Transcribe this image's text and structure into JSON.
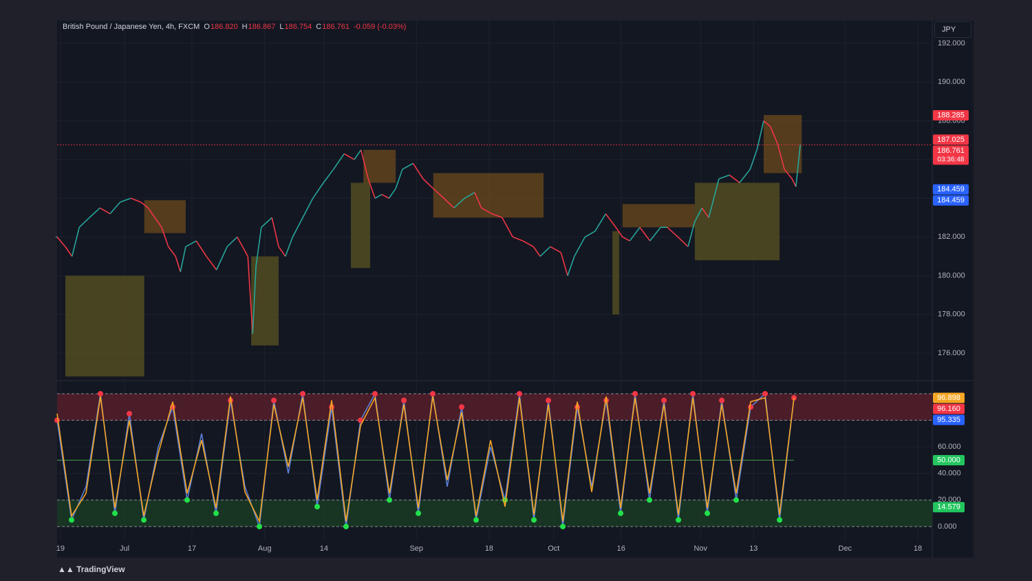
{
  "header": {
    "symbol": "British Pound / Japanese Yen, 4h, FXCM",
    "open_label": "O",
    "open": "186.820",
    "high_label": "H",
    "high": "186.867",
    "low_label": "L",
    "low": "186.754",
    "close_label": "C",
    "close": "186.761",
    "change": "-0.059 (-0.03%)"
  },
  "currency": "JPY",
  "brand": "TradingView",
  "chart_data": [
    {
      "type": "line",
      "up_color": "#26a69a",
      "down_color": "#f23645",
      "x": [
        0,
        1.7,
        3.1,
        4.6,
        6.7,
        8.9,
        11,
        13.1,
        15.3,
        17.4,
        18.9,
        20.3,
        21.7,
        23.1,
        24.6,
        25.6,
        26.7,
        28.9,
        31,
        33.1,
        35.3,
        37.4,
        39.6,
        40.6,
        41.3,
        42.4,
        44.6,
        46,
        47.4,
        48.9,
        51,
        53.1,
        55.3,
        57.4,
        59.6,
        61.7,
        63.1,
        64.6,
        66,
        67.4,
        68.9,
        70.3,
        71.7,
        73.9,
        76,
        78.1,
        80.3,
        82.4,
        84.6,
        86.7,
        88.1,
        90.3,
        92.4,
        94.6,
        96.7,
        98.9,
        100.3,
        102.4,
        104.6,
        106,
        107.4,
        109.6,
        111.7,
        113.9,
        116,
        117.4,
        118.9,
        121,
        123.1,
        125.3,
        126.7,
        128.9,
        131,
        132.4,
        133.9,
        135.3,
        137.4,
        139.6,
        141.7,
        143.9,
        145.3,
        146.7,
        148.1,
        149.6,
        151,
        152.6,
        153.4,
        154.3
      ],
      "values": [
        182.0,
        181.5,
        181.0,
        182.5,
        183.0,
        183.5,
        183.2,
        183.8,
        184.0,
        183.8,
        183.5,
        183.0,
        182.5,
        181.5,
        181.0,
        180.2,
        181.5,
        181.8,
        181.0,
        180.3,
        181.5,
        182.0,
        181.0,
        177.0,
        180.5,
        182.5,
        183.0,
        181.5,
        181.0,
        182.0,
        183.0,
        184.0,
        184.8,
        185.5,
        186.3,
        186.0,
        186.5,
        185.0,
        184.0,
        184.2,
        184.0,
        184.5,
        185.5,
        185.8,
        185.0,
        184.5,
        184.0,
        183.5,
        184.0,
        184.3,
        183.5,
        183.2,
        183.0,
        182.0,
        181.8,
        181.5,
        181.0,
        181.5,
        181.2,
        180.0,
        181.0,
        182.0,
        182.3,
        183.2,
        182.5,
        182.0,
        181.8,
        182.5,
        181.8,
        182.5,
        182.5,
        182.0,
        181.5,
        182.8,
        183.5,
        183.0,
        185.0,
        185.2,
        184.8,
        185.5,
        186.5,
        188.0,
        187.7,
        186.8,
        185.5,
        185.0,
        184.6,
        186.761
      ],
      "zones": [
        {
          "x0": 1.7,
          "x1": 18.1,
          "top": 180.0,
          "bottom": 174.8,
          "color": "#5b5320"
        },
        {
          "x0": 18.1,
          "x1": 26.7,
          "top": 183.9,
          "bottom": 182.2,
          "color": "#6b4a1c"
        },
        {
          "x0": 40.3,
          "x1": 46,
          "top": 181.0,
          "bottom": 176.4,
          "color": "#5b5320"
        },
        {
          "x0": 61,
          "x1": 65,
          "top": 184.8,
          "bottom": 180.4,
          "color": "#5b5320"
        },
        {
          "x0": 63.6,
          "x1": 70.3,
          "top": 186.5,
          "bottom": 184.8,
          "color": "#6b4a1c"
        },
        {
          "x0": 78.1,
          "x1": 101,
          "top": 185.3,
          "bottom": 183.0,
          "color": "#6b4a1c"
        },
        {
          "x0": 115.3,
          "x1": 116.7,
          "top": 182.3,
          "bottom": 178.0,
          "color": "#5b5320"
        },
        {
          "x0": 117.4,
          "x1": 132.4,
          "top": 183.7,
          "bottom": 182.5,
          "color": "#6b4a1c"
        },
        {
          "x0": 132.4,
          "x1": 150,
          "top": 184.8,
          "bottom": 180.8,
          "color": "#5b5320"
        },
        {
          "x0": 146.7,
          "x1": 154.6,
          "top": 188.3,
          "bottom": 185.3,
          "color": "#6b4a1c"
        }
      ],
      "price_labels": [
        {
          "value": 188.285,
          "label": "188.285",
          "color": "#f23645"
        },
        {
          "value": 187.025,
          "label": "187.025",
          "color": "#f23645"
        },
        {
          "value": 186.761,
          "label": "186.761",
          "color": "#f23645",
          "timer": "03:36:48"
        },
        {
          "value": 184.459,
          "label": "184.459",
          "color": "#2962ff"
        },
        {
          "value": 184.459,
          "label": "184.459",
          "color": "#2962ff"
        }
      ],
      "xlim": [
        0,
        181.7
      ],
      "ylim": [
        174.76,
        193.17
      ],
      "yticks": [
        {
          "value": 176,
          "label": "176.000"
        },
        {
          "value": 178,
          "label": "178.000"
        },
        {
          "value": 180,
          "label": "180.000"
        },
        {
          "value": 182,
          "label": "182.000"
        },
        {
          "value": 184,
          "label": "184.000"
        },
        {
          "value": 186,
          "label": "186.000"
        },
        {
          "value": 188,
          "label": "188.000"
        },
        {
          "value": 190,
          "label": "190.000"
        },
        {
          "value": 192,
          "label": "192.000"
        }
      ],
      "xticks": [
        {
          "value": 0.7,
          "label": "19"
        },
        {
          "value": 14,
          "label": "Jul"
        },
        {
          "value": 28,
          "label": "17"
        },
        {
          "value": 43.1,
          "label": "Aug"
        },
        {
          "value": 55.4,
          "label": "14"
        },
        {
          "value": 74.6,
          "label": "Sep"
        },
        {
          "value": 89.7,
          "label": "18"
        },
        {
          "value": 103.1,
          "label": "Oct"
        },
        {
          "value": 117.1,
          "label": "16"
        },
        {
          "value": 133.6,
          "label": "Nov"
        },
        {
          "value": 144.6,
          "label": "13"
        },
        {
          "value": 163.6,
          "label": "Dec"
        },
        {
          "value": 178.7,
          "label": "18"
        }
      ]
    },
    {
      "type": "oscillator",
      "x": [
        0,
        3,
        6,
        9,
        12,
        15,
        18,
        21,
        24,
        27,
        30,
        33,
        36,
        39,
        42,
        45,
        48,
        51,
        54,
        57,
        60,
        63,
        66,
        69,
        72,
        75,
        78,
        81,
        84,
        87,
        90,
        93,
        96,
        99,
        102,
        105,
        108,
        111,
        114,
        117,
        120,
        123,
        126,
        129,
        132,
        135,
        138,
        141,
        144,
        147,
        150,
        153
      ],
      "series": [
        {
          "color": "#5b7fd6",
          "values": [
            80,
            5,
            30,
            100,
            10,
            85,
            5,
            60,
            90,
            20,
            70,
            10,
            95,
            30,
            0,
            95,
            40,
            100,
            15,
            90,
            0,
            80,
            100,
            20,
            95,
            10,
            100,
            30,
            90,
            5,
            60,
            20,
            100,
            5,
            95,
            0,
            90,
            30,
            95,
            10,
            100,
            20,
            95,
            5,
            100,
            10,
            95,
            20,
            90,
            100,
            5,
            97
          ]
        },
        {
          "color": "#f5a623",
          "values": [
            85,
            8,
            25,
            98,
            14,
            80,
            8,
            55,
            94,
            25,
            65,
            14,
            98,
            26,
            4,
            92,
            45,
            97,
            20,
            95,
            4,
            76,
            97,
            25,
            92,
            14,
            98,
            35,
            86,
            8,
            65,
            15,
            97,
            9,
            92,
            4,
            94,
            26,
            98,
            14,
            97,
            25,
            92,
            9,
            97,
            14,
            92,
            25,
            94,
            97,
            9,
            97
          ]
        }
      ],
      "levels": [
        100,
        80,
        50,
        20,
        0
      ],
      "value_labels": [
        {
          "value": 96.898,
          "label": "96.898",
          "color": "#f5a623"
        },
        {
          "value": 96.16,
          "label": "96.160",
          "color": "#f23645"
        },
        {
          "value": 95.335,
          "label": "95.335",
          "color": "#2962ff"
        },
        {
          "value": 50,
          "label": "50.000",
          "color": "#22c55e"
        },
        {
          "value": 14.579,
          "label": "14.579",
          "color": "#22c55e"
        }
      ],
      "xlim": [
        0,
        181.7
      ],
      "ylim": [
        -10.4,
        106.2
      ],
      "yticks": [
        {
          "value": 0,
          "label": "0.000"
        },
        {
          "value": 20,
          "label": "20.000"
        },
        {
          "value": 40,
          "label": "40.000"
        },
        {
          "value": 60,
          "label": "60.000"
        }
      ]
    }
  ]
}
